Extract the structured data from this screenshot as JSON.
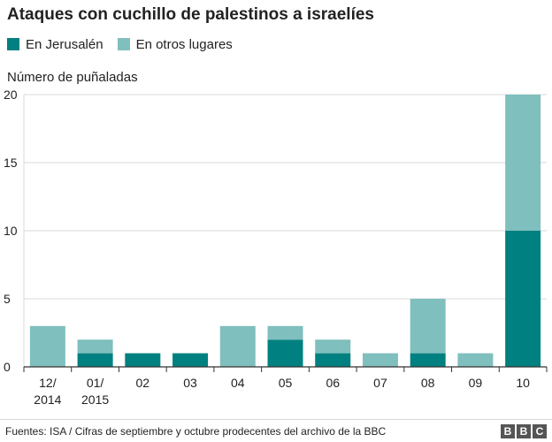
{
  "chart_data": {
    "type": "bar",
    "stacked": true,
    "title": "Ataques con cuchillo de palestinos a israelíes",
    "ylabel": "Número de puñaladas",
    "xlabel": "",
    "ylim": [
      0,
      20
    ],
    "yticks": [
      "0",
      "5",
      "10",
      "15",
      "20"
    ],
    "categories": [
      [
        "12/",
        "2014"
      ],
      [
        "01/",
        "2015"
      ],
      [
        "02"
      ],
      [
        "03"
      ],
      [
        "04"
      ],
      [
        "05"
      ],
      [
        "06"
      ],
      [
        "07"
      ],
      [
        "08"
      ],
      [
        "09"
      ],
      [
        "10"
      ]
    ],
    "series": [
      {
        "name": "En Jerusalén",
        "color": "#008080",
        "values": [
          0,
          1,
          1,
          1,
          0,
          2,
          1,
          0,
          1,
          0,
          10
        ]
      },
      {
        "name": "En otros lugares",
        "color": "#7fbfbe",
        "values": [
          3,
          1,
          0,
          0,
          3,
          1,
          1,
          1,
          4,
          1,
          10
        ]
      }
    ],
    "grid": true,
    "legend_position": "top-left"
  },
  "footer": {
    "source": "Fuentes: ISA / Cifras de septiembre y octubre prodecentes del archivo de la BBC",
    "logo_letters": [
      "B",
      "B",
      "C"
    ]
  }
}
